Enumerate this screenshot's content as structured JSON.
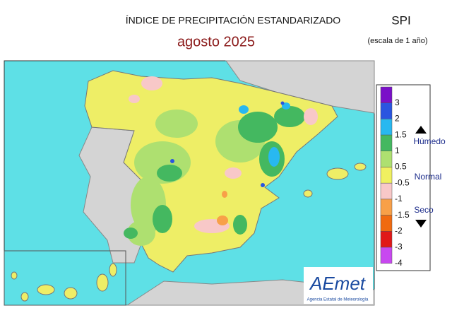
{
  "header": {
    "title": "ÍNDICE DE PRECIPITACIÓN ESTANDARIZADO",
    "subtitle": "agosto  2025",
    "index": "SPI",
    "scale": "(escala de 1 año)"
  },
  "legend": {
    "labels": [
      3,
      2,
      1.5,
      1,
      0.5,
      -0.5,
      -1,
      -1.5,
      -2,
      -3,
      -4
    ],
    "colors": [
      "#7a10c8",
      "#2a55e0",
      "#28b8f0",
      "#44b860",
      "#aee070",
      "#f0f060",
      "#f8c8c8",
      "#f8a048",
      "#f06a10",
      "#e01818",
      "#c848f0"
    ],
    "wet": "Húmedo",
    "normal": "Normal",
    "dry": "Seco"
  },
  "logo": {
    "name": "AEmet",
    "caption": "Agencia Estatal de Meteorología"
  }
}
